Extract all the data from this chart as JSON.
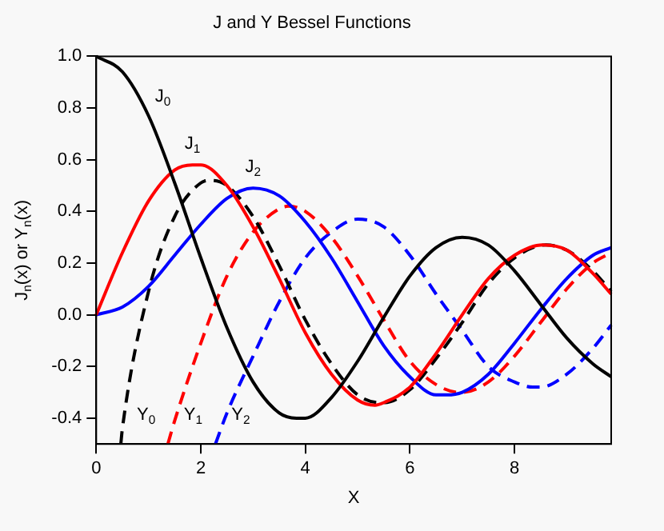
{
  "chart_data": {
    "type": "line",
    "title": "J and Y Bessel Functions",
    "xlabel": "X",
    "ylabel": "J$_{n}$(x) or Y$_{n}$(x)",
    "xlim": [
      0,
      9.85
    ],
    "xticks": [
      0,
      2,
      4,
      6,
      8
    ],
    "ylim": [
      -0.5,
      1.0
    ],
    "yticks": [
      -0.4,
      -0.2,
      {
        "value": 0,
        "label": "0.0"
      },
      0.2,
      0.4,
      0.6,
      0.8,
      {
        "value": 1,
        "label": "1.0"
      }
    ],
    "grid": false,
    "legend": false,
    "marker": "none",
    "series": [
      {
        "name": "J$_{0}$",
        "color": "#000000",
        "line_style": "solid",
        "x": [
          0,
          0.5,
          1,
          1.5,
          2,
          2.5,
          3,
          3.5,
          3.83,
          4,
          4.5,
          5,
          5.5,
          6,
          6.5,
          7,
          7.5,
          8,
          8.5,
          9,
          9.5,
          9.85
        ],
        "values": [
          1,
          0.94,
          0.77,
          0.51,
          0.22,
          -0.05,
          -0.26,
          -0.38,
          -0.4,
          -0.4,
          -0.32,
          -0.18,
          -0.01,
          0.15,
          0.26,
          0.3,
          0.27,
          0.17,
          0.04,
          -0.09,
          -0.19,
          -0.24
        ]
      },
      {
        "name": "J$_{1}$",
        "color": "#ff0000",
        "line_style": "solid",
        "x": [
          0,
          0.5,
          1,
          1.5,
          1.84,
          2,
          2.5,
          3,
          3.5,
          4,
          4.5,
          5,
          5.33,
          5.5,
          6,
          6.5,
          7,
          7.5,
          8,
          8.54,
          9,
          9.5,
          9.85
        ],
        "values": [
          0,
          0.24,
          0.44,
          0.56,
          0.58,
          0.58,
          0.5,
          0.34,
          0.14,
          -0.07,
          -0.23,
          -0.33,
          -0.35,
          -0.34,
          -0.28,
          -0.15,
          0,
          0.14,
          0.23,
          0.27,
          0.25,
          0.16,
          0.08
        ]
      },
      {
        "name": "J$_{2}$",
        "color": "#0000ff",
        "line_style": "solid",
        "x": [
          0,
          0.5,
          1,
          1.5,
          2,
          2.5,
          3,
          3.5,
          4,
          4.5,
          5,
          5.5,
          6,
          6.5,
          6.7,
          7,
          7.5,
          8,
          8.5,
          9,
          9.5,
          9.85
        ],
        "values": [
          0,
          0.03,
          0.11,
          0.23,
          0.35,
          0.45,
          0.49,
          0.46,
          0.36,
          0.22,
          0.05,
          -0.12,
          -0.24,
          -0.31,
          -0.31,
          -0.3,
          -0.23,
          -0.11,
          0.02,
          0.14,
          0.23,
          0.26
        ]
      },
      {
        "name": "Y$_{0}$",
        "color": "#000000",
        "line_style": "dashed",
        "x": [
          0.47,
          0.5,
          1,
          1.5,
          2,
          2.2,
          2.5,
          3,
          3.5,
          4,
          4.5,
          5,
          5.43,
          5.5,
          6,
          6.5,
          7,
          7.5,
          8,
          8.6,
          9,
          9.5,
          9.85
        ],
        "values": [
          -0.5,
          -0.44,
          0.09,
          0.38,
          0.51,
          0.52,
          0.5,
          0.38,
          0.19,
          -0.02,
          -0.19,
          -0.31,
          -0.34,
          -0.34,
          -0.29,
          -0.17,
          -0.03,
          0.12,
          0.22,
          0.27,
          0.25,
          0.17,
          0.09
        ]
      },
      {
        "name": "Y$_{1}$",
        "color": "#ff0000",
        "line_style": "dashed",
        "x": [
          1.37,
          1.5,
          2,
          2.5,
          3,
          3.5,
          3.68,
          4,
          4.5,
          5,
          5.5,
          6,
          6.5,
          6.94,
          7,
          7.5,
          8,
          8.5,
          9,
          9.5,
          9.85
        ],
        "values": [
          -0.5,
          -0.41,
          -0.11,
          0.15,
          0.32,
          0.41,
          0.42,
          0.4,
          0.3,
          0.15,
          -0.02,
          -0.18,
          -0.27,
          -0.3,
          -0.3,
          -0.26,
          -0.16,
          -0.03,
          0.1,
          0.2,
          0.24
        ]
      },
      {
        "name": "Y$_{2}$",
        "color": "#0000ff",
        "line_style": "dashed",
        "x": [
          2.28,
          2.5,
          3,
          3.5,
          4,
          4.5,
          5,
          5.5,
          6,
          6.5,
          7,
          7.5,
          8,
          8.35,
          8.5,
          9,
          9.5,
          9.85
        ],
        "values": [
          -0.5,
          -0.38,
          -0.16,
          0.05,
          0.22,
          0.32,
          0.37,
          0.34,
          0.23,
          0.08,
          -0.06,
          -0.2,
          -0.26,
          -0.28,
          -0.28,
          -0.23,
          -0.13,
          -0.04
        ]
      }
    ]
  }
}
